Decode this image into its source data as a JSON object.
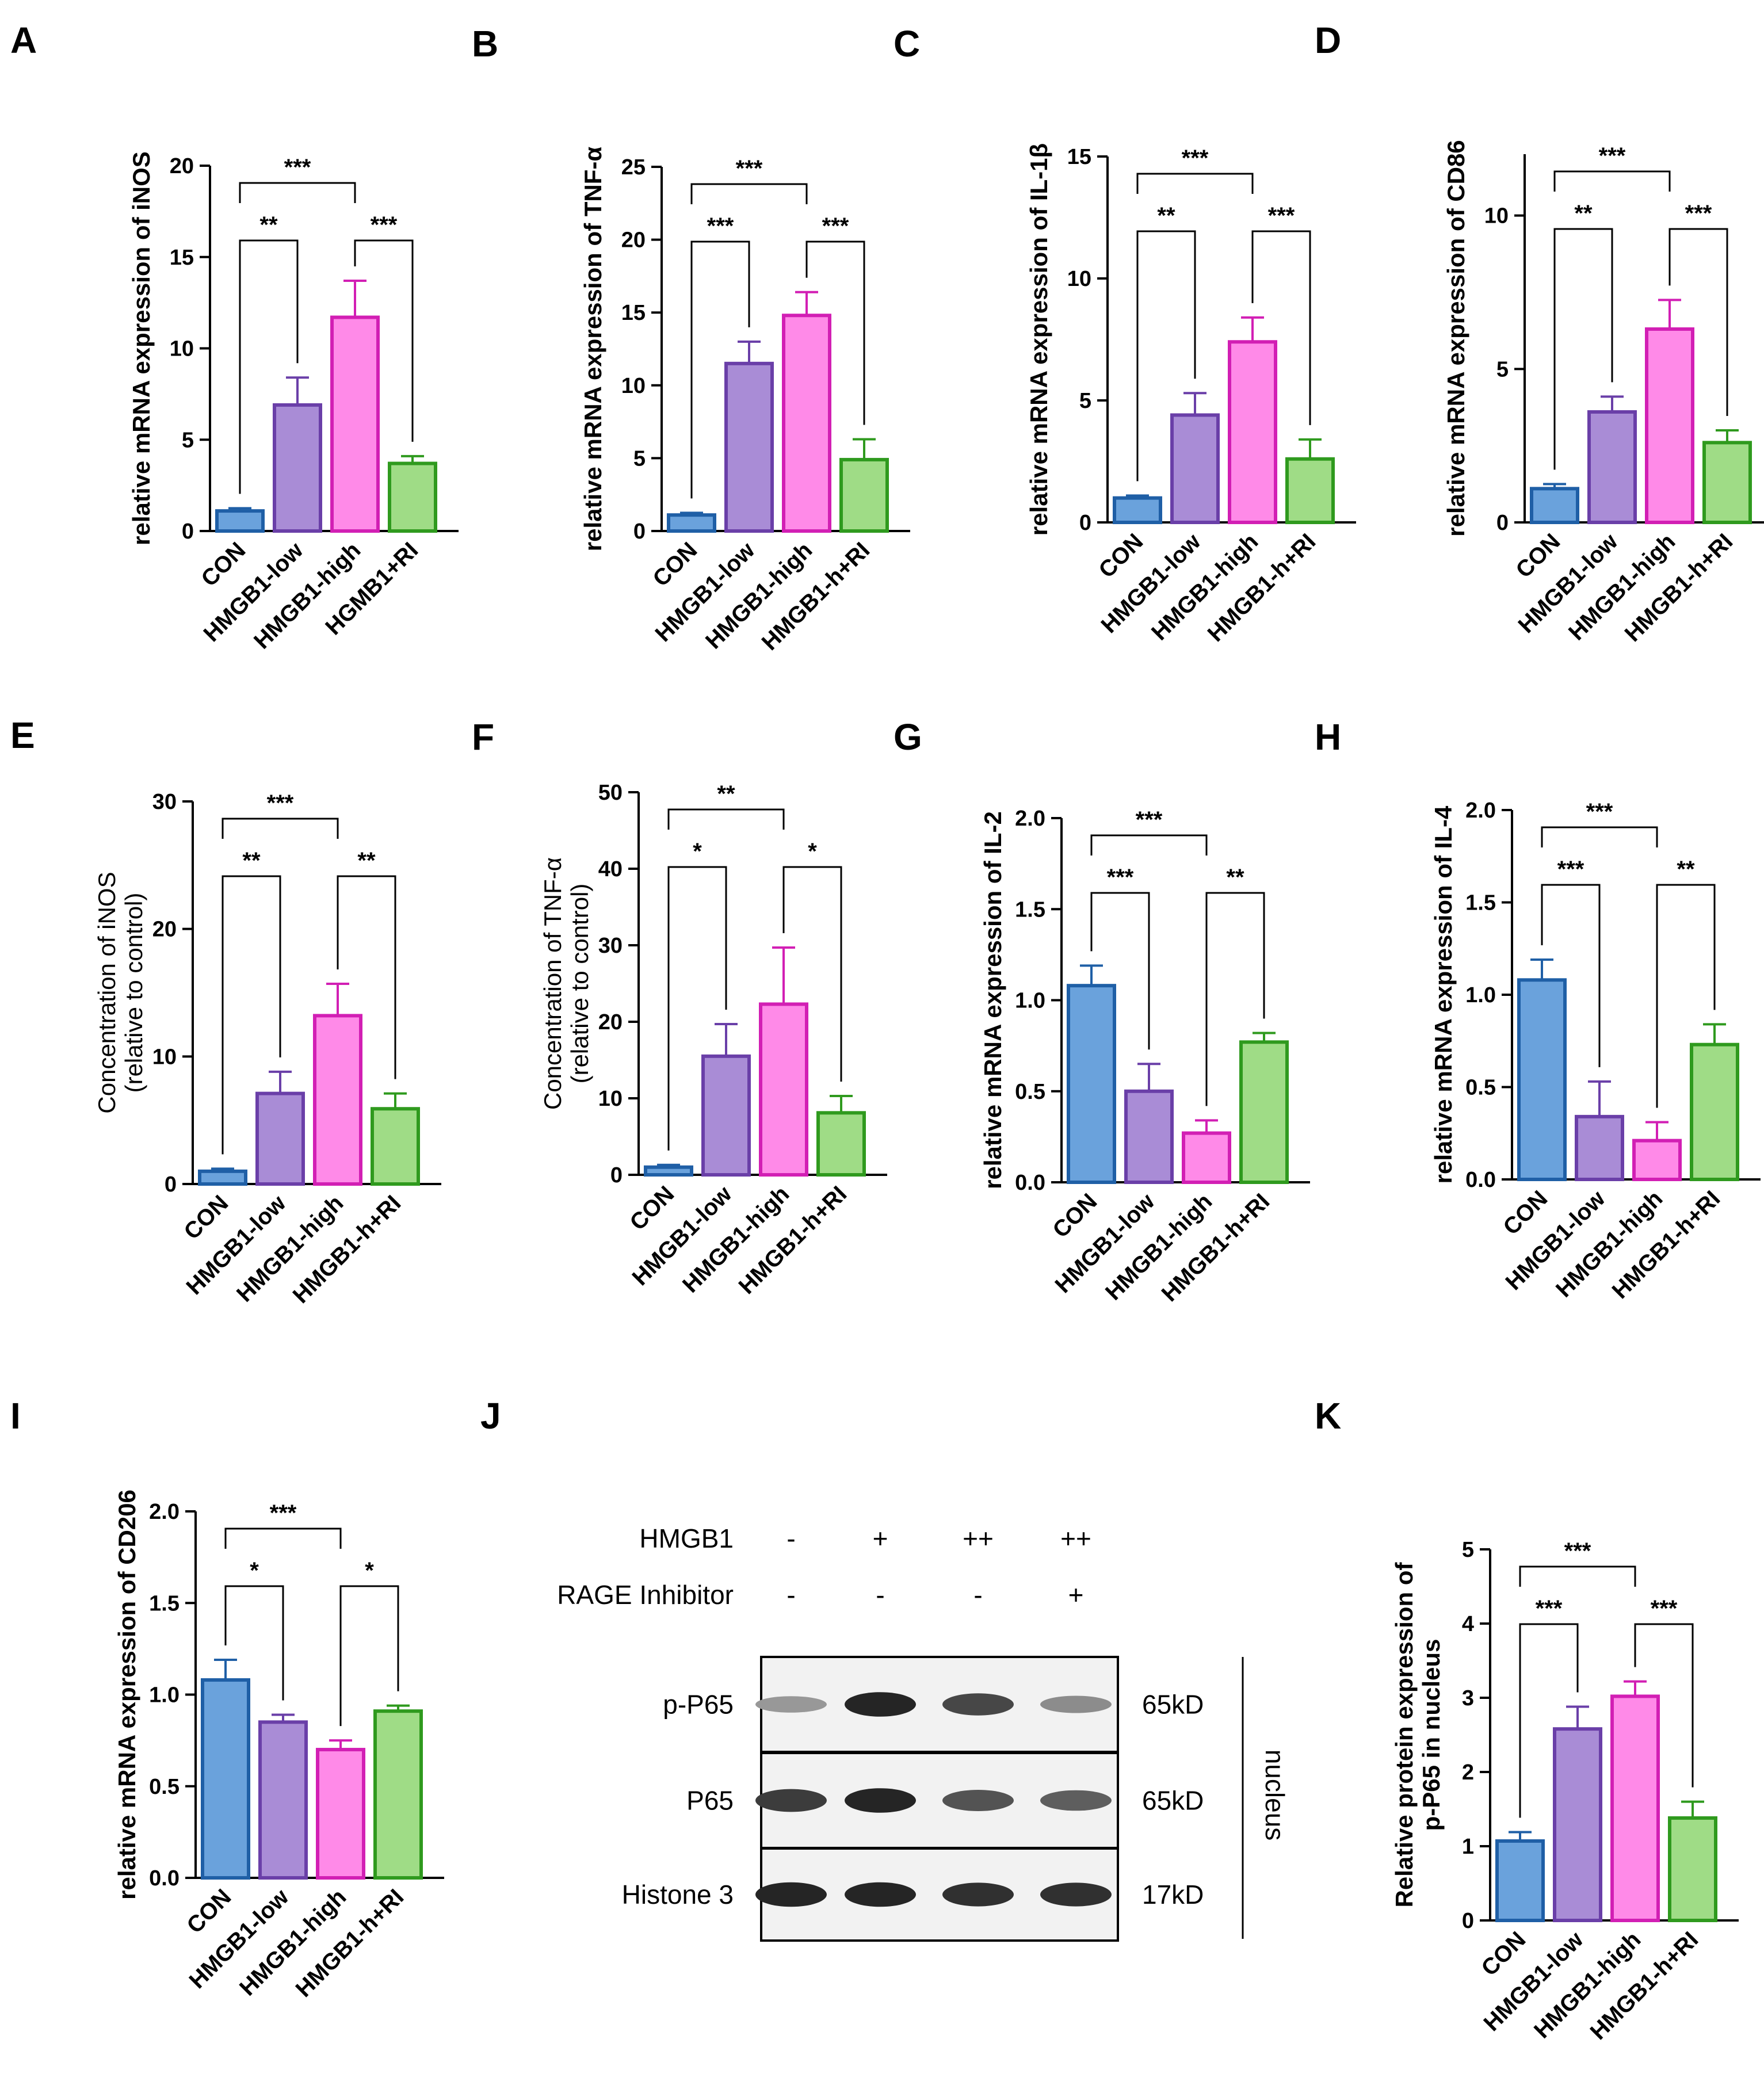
{
  "colors": {
    "CON": {
      "fill": "#6aa2dc",
      "stroke": "#1f5fa6"
    },
    "HMGB1-low": {
      "fill": "#a98cd6",
      "stroke": "#6a3fa8"
    },
    "HMGB1-high": {
      "fill": "#ff8ae8",
      "stroke": "#d21fb4"
    },
    "HMGB1-h+RI": {
      "fill": "#9fdc86",
      "stroke": "#2f9a1e"
    }
  },
  "chart_data": [
    {
      "panel": "A",
      "type": "bar",
      "ylabel": "relative mRNA expression of iNOS",
      "ylabel_bold": true,
      "categories": [
        "CON",
        "HMGB1-low",
        "HMGB1-high",
        "HGMB1+RI"
      ],
      "values": [
        1.1,
        6.9,
        11.7,
        3.7
      ],
      "errors": [
        0.15,
        1.5,
        2.0,
        0.4
      ],
      "ylim": [
        0,
        20
      ],
      "ticks": [
        "0",
        "5",
        "10",
        "15",
        "20"
      ],
      "sig": [
        {
          "from": 0,
          "to": 2,
          "label": "***",
          "level": 2
        },
        {
          "from": 0,
          "to": 1,
          "label": "**",
          "level": 1
        },
        {
          "from": 2,
          "to": 3,
          "label": "***",
          "level": 1
        }
      ]
    },
    {
      "panel": "B",
      "type": "bar",
      "ylabel": "relative mRNA expression of TNF-α",
      "ylabel_bold": true,
      "categories": [
        "CON",
        "HMGB1-low",
        "HMGB1-high",
        "HMGB1-h+RI"
      ],
      "values": [
        1.1,
        11.5,
        14.8,
        4.9
      ],
      "errors": [
        0.15,
        1.5,
        1.6,
        1.4
      ],
      "ylim": [
        0,
        25
      ],
      "ticks": [
        "0",
        "5",
        "10",
        "15",
        "20",
        "25"
      ],
      "sig": [
        {
          "from": 0,
          "to": 2,
          "label": "***",
          "level": 2
        },
        {
          "from": 0,
          "to": 1,
          "label": "***",
          "level": 1
        },
        {
          "from": 2,
          "to": 3,
          "label": "***",
          "level": 1
        }
      ]
    },
    {
      "panel": "C",
      "type": "bar",
      "ylabel": "relative mRNA expression of IL-1β",
      "ylabel_bold": true,
      "categories": [
        "CON",
        "HMGB1-low",
        "HMGB1-high",
        "HMGB1-h+RI"
      ],
      "values": [
        1.0,
        4.4,
        7.4,
        2.6
      ],
      "errors": [
        0.1,
        0.9,
        1.0,
        0.8
      ],
      "ylim": [
        0,
        15
      ],
      "ticks": [
        "0",
        "5",
        "10",
        "15"
      ],
      "sig": [
        {
          "from": 0,
          "to": 2,
          "label": "***",
          "level": 2
        },
        {
          "from": 0,
          "to": 1,
          "label": "**",
          "level": 1
        },
        {
          "from": 2,
          "to": 3,
          "label": "***",
          "level": 1
        }
      ]
    },
    {
      "panel": "D",
      "type": "bar",
      "ylabel": "relative mRNA expression of CD86",
      "ylabel_bold": true,
      "categories": [
        "CON",
        "HMGB1-low",
        "HMGB1-high",
        "HMGB1-h+RI"
      ],
      "values": [
        1.1,
        3.6,
        6.3,
        2.6
      ],
      "errors": [
        0.15,
        0.5,
        0.95,
        0.4
      ],
      "ylim": [
        0,
        12
      ],
      "ticks": [
        "0",
        "5",
        "10"
      ],
      "tickvals": [
        0,
        5,
        10
      ],
      "sig": [
        {
          "from": 0,
          "to": 2,
          "label": "***",
          "level": 2
        },
        {
          "from": 0,
          "to": 1,
          "label": "**",
          "level": 1
        },
        {
          "from": 2,
          "to": 3,
          "label": "***",
          "level": 1
        }
      ]
    },
    {
      "panel": "E",
      "type": "bar",
      "ylabel": "Concentration of iNOS",
      "ylabel2": "(relative to control)",
      "ylabel_bold": false,
      "categories": [
        "CON",
        "HMGB1-low",
        "HMGB1-high",
        "HMGB1-h+RI"
      ],
      "values": [
        1.0,
        7.1,
        13.2,
        5.9
      ],
      "errors": [
        0.2,
        1.7,
        2.5,
        1.2
      ],
      "ylim": [
        0,
        30
      ],
      "ticks": [
        "0",
        "10",
        "20",
        "30"
      ],
      "sig": [
        {
          "from": 0,
          "to": 2,
          "label": "***",
          "level": 2
        },
        {
          "from": 0,
          "to": 1,
          "label": "**",
          "level": 1
        },
        {
          "from": 2,
          "to": 3,
          "label": "**",
          "level": 1
        }
      ]
    },
    {
      "panel": "F",
      "type": "bar",
      "ylabel": "Concentration of TNF-α",
      "ylabel2": "(relative to control)",
      "ylabel_bold": false,
      "categories": [
        "CON",
        "HMGB1-low",
        "HMGB1-high",
        "HMGB1-h+RI"
      ],
      "values": [
        1.0,
        15.5,
        22.3,
        8.1
      ],
      "errors": [
        0.3,
        4.2,
        7.4,
        2.2
      ],
      "ylim": [
        0,
        50
      ],
      "ticks": [
        "0",
        "10",
        "20",
        "30",
        "40",
        "50"
      ],
      "sig": [
        {
          "from": 0,
          "to": 2,
          "label": "**",
          "level": 2
        },
        {
          "from": 0,
          "to": 1,
          "label": "*",
          "level": 1
        },
        {
          "from": 2,
          "to": 3,
          "label": "*",
          "level": 1
        }
      ]
    },
    {
      "panel": "G",
      "type": "bar",
      "ylabel": "relative mRNA expression of IL-2",
      "ylabel_bold": true,
      "categories": [
        "CON",
        "HMGB1-low",
        "HMGB1-high",
        "HMGB1-h+RI"
      ],
      "values": [
        1.08,
        0.5,
        0.27,
        0.77
      ],
      "errors": [
        0.11,
        0.15,
        0.07,
        0.05
      ],
      "ylim": [
        0,
        2
      ],
      "ticks": [
        "0.0",
        "0.5",
        "1.0",
        "1.5",
        "2.0"
      ],
      "sig": [
        {
          "from": 0,
          "to": 2,
          "label": "***",
          "level": 2
        },
        {
          "from": 0,
          "to": 1,
          "label": "***",
          "level": 1
        },
        {
          "from": 2,
          "to": 3,
          "label": "**",
          "level": 1
        }
      ]
    },
    {
      "panel": "H",
      "type": "bar",
      "ylabel": "relative mRNA expression of IL-4",
      "ylabel_bold": true,
      "categories": [
        "CON",
        "HMGB1-low",
        "HMGB1-high",
        "HMGB1-h+RI"
      ],
      "values": [
        1.08,
        0.34,
        0.21,
        0.73
      ],
      "errors": [
        0.11,
        0.19,
        0.1,
        0.11
      ],
      "ylim": [
        0,
        2
      ],
      "ticks": [
        "0.0",
        "0.5",
        "1.0",
        "1.5",
        "2.0"
      ],
      "sig": [
        {
          "from": 0,
          "to": 2,
          "label": "***",
          "level": 2
        },
        {
          "from": 0,
          "to": 1,
          "label": "***",
          "level": 1
        },
        {
          "from": 2,
          "to": 3,
          "label": "**",
          "level": 1
        }
      ]
    },
    {
      "panel": "I",
      "type": "bar",
      "ylabel": "relative mRNA expression of CD206",
      "ylabel_bold": true,
      "categories": [
        "CON",
        "HMGB1-low",
        "HMGB1-high",
        "HMGB1-h+RI"
      ],
      "values": [
        1.08,
        0.85,
        0.7,
        0.91
      ],
      "errors": [
        0.11,
        0.04,
        0.05,
        0.03
      ],
      "ylim": [
        0,
        2
      ],
      "ticks": [
        "0.0",
        "0.5",
        "1.0",
        "1.5",
        "2.0"
      ],
      "sig": [
        {
          "from": 0,
          "to": 2,
          "label": "***",
          "level": 2
        },
        {
          "from": 0,
          "to": 1,
          "label": "*",
          "level": 1
        },
        {
          "from": 2,
          "to": 3,
          "label": "*",
          "level": 1
        }
      ]
    },
    {
      "panel": "K",
      "type": "bar",
      "ylabel": "Relative protein expression of",
      "ylabel2": "p-P65 in nucleus",
      "ylabel_bold": true,
      "categories": [
        "CON",
        "HMGB1-low",
        "HMGB1-high",
        "HMGB1-h+RI"
      ],
      "values": [
        1.07,
        2.58,
        3.02,
        1.38
      ],
      "errors": [
        0.12,
        0.3,
        0.2,
        0.22
      ],
      "ylim": [
        0,
        5
      ],
      "ticks": [
        "0",
        "1",
        "2",
        "3",
        "4",
        "5"
      ],
      "sig": [
        {
          "from": 0,
          "to": 2,
          "label": "***",
          "level": 2
        },
        {
          "from": 0,
          "to": 1,
          "label": "***",
          "level": 1
        },
        {
          "from": 2,
          "to": 3,
          "label": "***",
          "level": 1
        }
      ]
    }
  ],
  "western_blot": {
    "panel": "J",
    "treatments": [
      {
        "label": "HMGB1",
        "values": [
          "-",
          "+",
          "++",
          "++"
        ]
      },
      {
        "label": "RAGE Inhibitor",
        "values": [
          "-",
          "-",
          "-",
          "+"
        ]
      }
    ],
    "rows": [
      {
        "label": "p-P65",
        "size": "65kD",
        "intensity": [
          0.45,
          0.95,
          0.8,
          0.5
        ]
      },
      {
        "label": "P65",
        "size": "65kD",
        "intensity": [
          0.85,
          0.95,
          0.75,
          0.7
        ]
      },
      {
        "label": "Histone 3",
        "size": "17kD",
        "intensity": [
          0.95,
          0.95,
          0.9,
          0.9
        ]
      }
    ],
    "side_label": "nucleus"
  }
}
